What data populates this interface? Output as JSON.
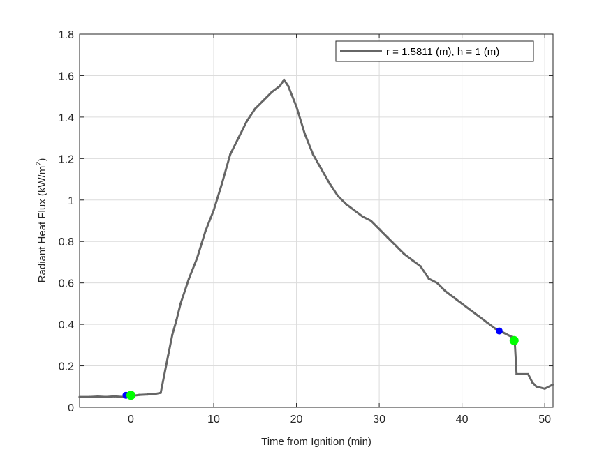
{
  "colors": {
    "background": "#ffffff",
    "axes": "#262626",
    "grid": "#dcdcdc",
    "series_line": "#666666",
    "marker_blue": "#0000ff",
    "marker_green": "#00ff00"
  },
  "chart_data": {
    "type": "line",
    "title": "",
    "xlabel": "Time from Ignition (min)",
    "ylabel_main": "Radiant Heat Flux (kW/m",
    "ylabel_sup": "2",
    "ylabel_close": ")",
    "xlim": [
      -6.2,
      51
    ],
    "ylim": [
      0,
      1.8
    ],
    "xticks": [
      0,
      10,
      20,
      30,
      40,
      50
    ],
    "xtick_labels": [
      "0",
      "10",
      "20",
      "30",
      "40",
      "50"
    ],
    "yticks": [
      0,
      0.2,
      0.4,
      0.6,
      0.8,
      1,
      1.2,
      1.4,
      1.6,
      1.8
    ],
    "ytick_labels": [
      "0",
      "0.2",
      "0.4",
      "0.6",
      "0.8",
      "1",
      "1.2",
      "1.4",
      "1.6",
      "1.8"
    ],
    "grid": true,
    "legend_position": "top-right",
    "series": [
      {
        "name": "r = 1.5811 (m), h = 1 (m)",
        "x": [
          -6.2,
          -5,
          -4,
          -3,
          -2,
          -1,
          0,
          1,
          2,
          3,
          3.6,
          4,
          4.5,
          5,
          5.5,
          6,
          7,
          8,
          9,
          10,
          11,
          12,
          13,
          14,
          15,
          16,
          17,
          18,
          18.5,
          19,
          20,
          21,
          22,
          23,
          24,
          25,
          26,
          27,
          28,
          29,
          30,
          31,
          32,
          33,
          34,
          35,
          36,
          37,
          38,
          39,
          40,
          41,
          42,
          43,
          44,
          45,
          46,
          46.4,
          46.6,
          47,
          48,
          48.5,
          49,
          50,
          51
        ],
        "y": [
          0.05,
          0.05,
          0.052,
          0.05,
          0.053,
          0.05,
          0.055,
          0.06,
          0.062,
          0.065,
          0.07,
          0.15,
          0.25,
          0.35,
          0.42,
          0.5,
          0.62,
          0.72,
          0.85,
          0.95,
          1.08,
          1.22,
          1.3,
          1.38,
          1.44,
          1.48,
          1.52,
          1.55,
          1.58,
          1.55,
          1.45,
          1.32,
          1.22,
          1.15,
          1.08,
          1.02,
          0.98,
          0.95,
          0.92,
          0.9,
          0.86,
          0.82,
          0.78,
          0.74,
          0.71,
          0.68,
          0.62,
          0.6,
          0.56,
          0.53,
          0.5,
          0.47,
          0.44,
          0.41,
          0.38,
          0.36,
          0.34,
          0.3,
          0.16,
          0.16,
          0.16,
          0.12,
          0.1,
          0.09,
          0.11
        ]
      }
    ],
    "markers": [
      {
        "color": "blue",
        "x": -0.6,
        "y": 0.058
      },
      {
        "color": "green",
        "x": 0,
        "y": 0.058
      },
      {
        "color": "blue",
        "x": 44.5,
        "y": 0.368
      },
      {
        "color": "green",
        "x": 46.3,
        "y": 0.322
      }
    ]
  }
}
